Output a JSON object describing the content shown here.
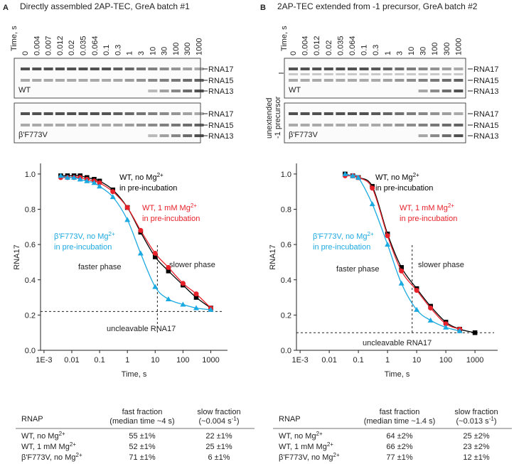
{
  "panels": [
    {
      "letter": "A",
      "title": "Directly assembled 2AP-TEC, GreA batch #1",
      "time_label": "Time, s",
      "times": [
        "0",
        "0.004",
        "0.007",
        "0.012",
        "0.02",
        "0.035",
        "0.064",
        "0.1",
        "0.3",
        "1",
        "3",
        "10",
        "30",
        "100",
        "300",
        "1000"
      ],
      "gels": [
        {
          "label": "WT",
          "bands": [
            "RNA17",
            "RNA15",
            "RNA13"
          ]
        },
        {
          "label": "β'F773V",
          "bands": [
            "RNA17",
            "RNA15",
            "RNA13"
          ]
        }
      ],
      "table": {
        "headers": [
          "RNAP",
          "fast fraction",
          "slow fraction"
        ],
        "fast_sub": "(median time ~4 s)",
        "slow_sub": [
          "(~0.004 s",
          "-1",
          ")"
        ],
        "rows": [
          {
            "name": "WT, no Mg",
            "sup": "2+",
            "fast": "55 ±1%",
            "slow": "22 ±1%"
          },
          {
            "name": "WT, 1 mM Mg",
            "sup": "2+",
            "fast": "52 ±1%",
            "slow": "25 ±1%"
          },
          {
            "name": "β'F773V, no Mg",
            "sup": "2+",
            "fast": "71 ±1%",
            "slow": "6 ±1%"
          }
        ]
      }
    },
    {
      "letter": "B",
      "title": "2AP-TEC extended from -1 precursor, GreA batch #2",
      "time_label": "Time, s",
      "precursor_label": [
        "unextended",
        "-1 precursor"
      ],
      "times": [
        "0",
        "0.004",
        "0.012",
        "0.02",
        "0.035",
        "0.064",
        "0.1",
        "0.3",
        "1",
        "3",
        "10",
        "30",
        "100",
        "300",
        "1000"
      ],
      "gels": [
        {
          "label": "WT",
          "bands": [
            "RNA17",
            "RNA15",
            "RNA13"
          ]
        },
        {
          "label": "β'F773V",
          "bands": [
            "RNA17",
            "RNA15",
            "RNA13"
          ]
        }
      ],
      "table": {
        "headers": [
          "RNAP",
          "fast fraction",
          "slow fraction"
        ],
        "fast_sub": "(median time ~1.4 s)",
        "slow_sub": [
          "(~0.013 s",
          "-1",
          ")"
        ],
        "rows": [
          {
            "name": "WT, no Mg",
            "sup": "2+",
            "fast": "64 ±2%",
            "slow": "25 ±2%"
          },
          {
            "name": "WT, 1 mM Mg",
            "sup": "2+",
            "fast": "66 ±2%",
            "slow": "23 ±2%"
          },
          {
            "name": "β'F773V, no Mg",
            "sup": "2+",
            "fast": "77 ±1%",
            "slow": "12 ±1%"
          }
        ]
      }
    }
  ],
  "chart_data": [
    {
      "type": "scatter",
      "xlabel": "Time, s",
      "ylabel": "RNA17",
      "xscale": "log",
      "xlim": [
        0.00075,
        4000
      ],
      "xticks": [
        {
          "value": 0.001,
          "label": "1E-3"
        },
        0.01,
        0.1,
        1,
        10,
        100,
        1000
      ],
      "ylim": [
        0,
        1.06
      ],
      "yticks": [
        {
          "value": 0,
          "label": "0.0"
        },
        0.2,
        0.4,
        0.6,
        0.8,
        {
          "value": 1,
          "label": "1.0"
        }
      ],
      "x": [
        0.004,
        0.007,
        0.012,
        0.02,
        0.035,
        0.064,
        0.1,
        0.3,
        1,
        3,
        10,
        30,
        100,
        300,
        1000
      ],
      "baseline": 0.22,
      "phase_boundary": 12,
      "annotations": [
        "faster phase",
        "slower phase",
        "uncleavable RNA17"
      ],
      "series": [
        {
          "name": "WT, no Mg",
          "name_sup": "2+",
          "name_line2": "in pre-incubation",
          "color": "#000000",
          "marker": "square",
          "values": [
            0.99,
            0.99,
            0.99,
            0.99,
            0.98,
            0.97,
            0.96,
            0.91,
            0.81,
            0.67,
            0.53,
            0.45,
            0.37,
            0.3,
            0.24
          ]
        },
        {
          "name": "WT, 1 mM Mg",
          "name_sup": "2+",
          "name_line2": "in pre-incubation",
          "color": "#e8202a",
          "marker": "circle",
          "values": [
            0.98,
            0.98,
            0.98,
            0.98,
            0.97,
            0.96,
            0.95,
            0.9,
            0.81,
            0.68,
            0.55,
            0.47,
            0.38,
            0.32,
            0.24
          ]
        },
        {
          "name": "β'F773V, no Mg",
          "name_sup": "2+",
          "name_line2": "in pre-incubation",
          "color": "#1ba9e1",
          "marker": "triangle",
          "values": [
            0.99,
            0.98,
            0.98,
            0.97,
            0.96,
            0.95,
            0.93,
            0.87,
            0.74,
            0.55,
            0.36,
            0.29,
            0.26,
            0.24,
            0.23
          ]
        }
      ]
    },
    {
      "type": "scatter",
      "xlabel": "Time, s",
      "ylabel": "RNA17",
      "xscale": "log",
      "xlim": [
        0.00075,
        6000
      ],
      "xticks": [
        {
          "value": 0.001,
          "label": "1E-3"
        },
        0.01,
        0.1,
        1,
        10,
        100,
        1000
      ],
      "ylim": [
        0,
        1.06
      ],
      "yticks": [
        {
          "value": 0,
          "label": "0.0"
        },
        0.2,
        0.4,
        0.6,
        0.8,
        {
          "value": 1,
          "label": "1.0"
        }
      ],
      "x": [
        0.035,
        0.064,
        0.1,
        0.3,
        1,
        3,
        10,
        30,
        100,
        300,
        1000
      ],
      "baseline": 0.1,
      "phase_boundary": 7,
      "annotations": [
        "faster phase",
        "slower phase",
        "uncleavable RNA17"
      ],
      "series": [
        {
          "name": "WT, no Mg",
          "name_sup": "2+",
          "name_line2": "in pre-incubation",
          "color": "#000000",
          "marker": "square",
          "values": [
            1.0,
            0.99,
            0.98,
            0.93,
            0.66,
            0.47,
            0.35,
            0.25,
            0.16,
            0.12,
            0.1
          ]
        },
        {
          "name": "WT, 1 mM Mg",
          "name_sup": "2+",
          "name_line2": "in pre-incubation",
          "color": "#e8202a",
          "marker": "circle",
          "values": [
            0.99,
            0.99,
            0.98,
            0.92,
            0.65,
            0.45,
            0.34,
            0.24,
            0.15,
            0.12,
            null
          ]
        },
        {
          "name": "β'F773V, no Mg",
          "name_sup": "2+",
          "name_line2": "in pre-incubation",
          "color": "#1ba9e1",
          "marker": "triangle",
          "values": [
            1.0,
            0.99,
            0.98,
            0.83,
            0.6,
            0.38,
            0.23,
            0.17,
            0.13,
            0.11,
            null
          ]
        }
      ]
    }
  ]
}
